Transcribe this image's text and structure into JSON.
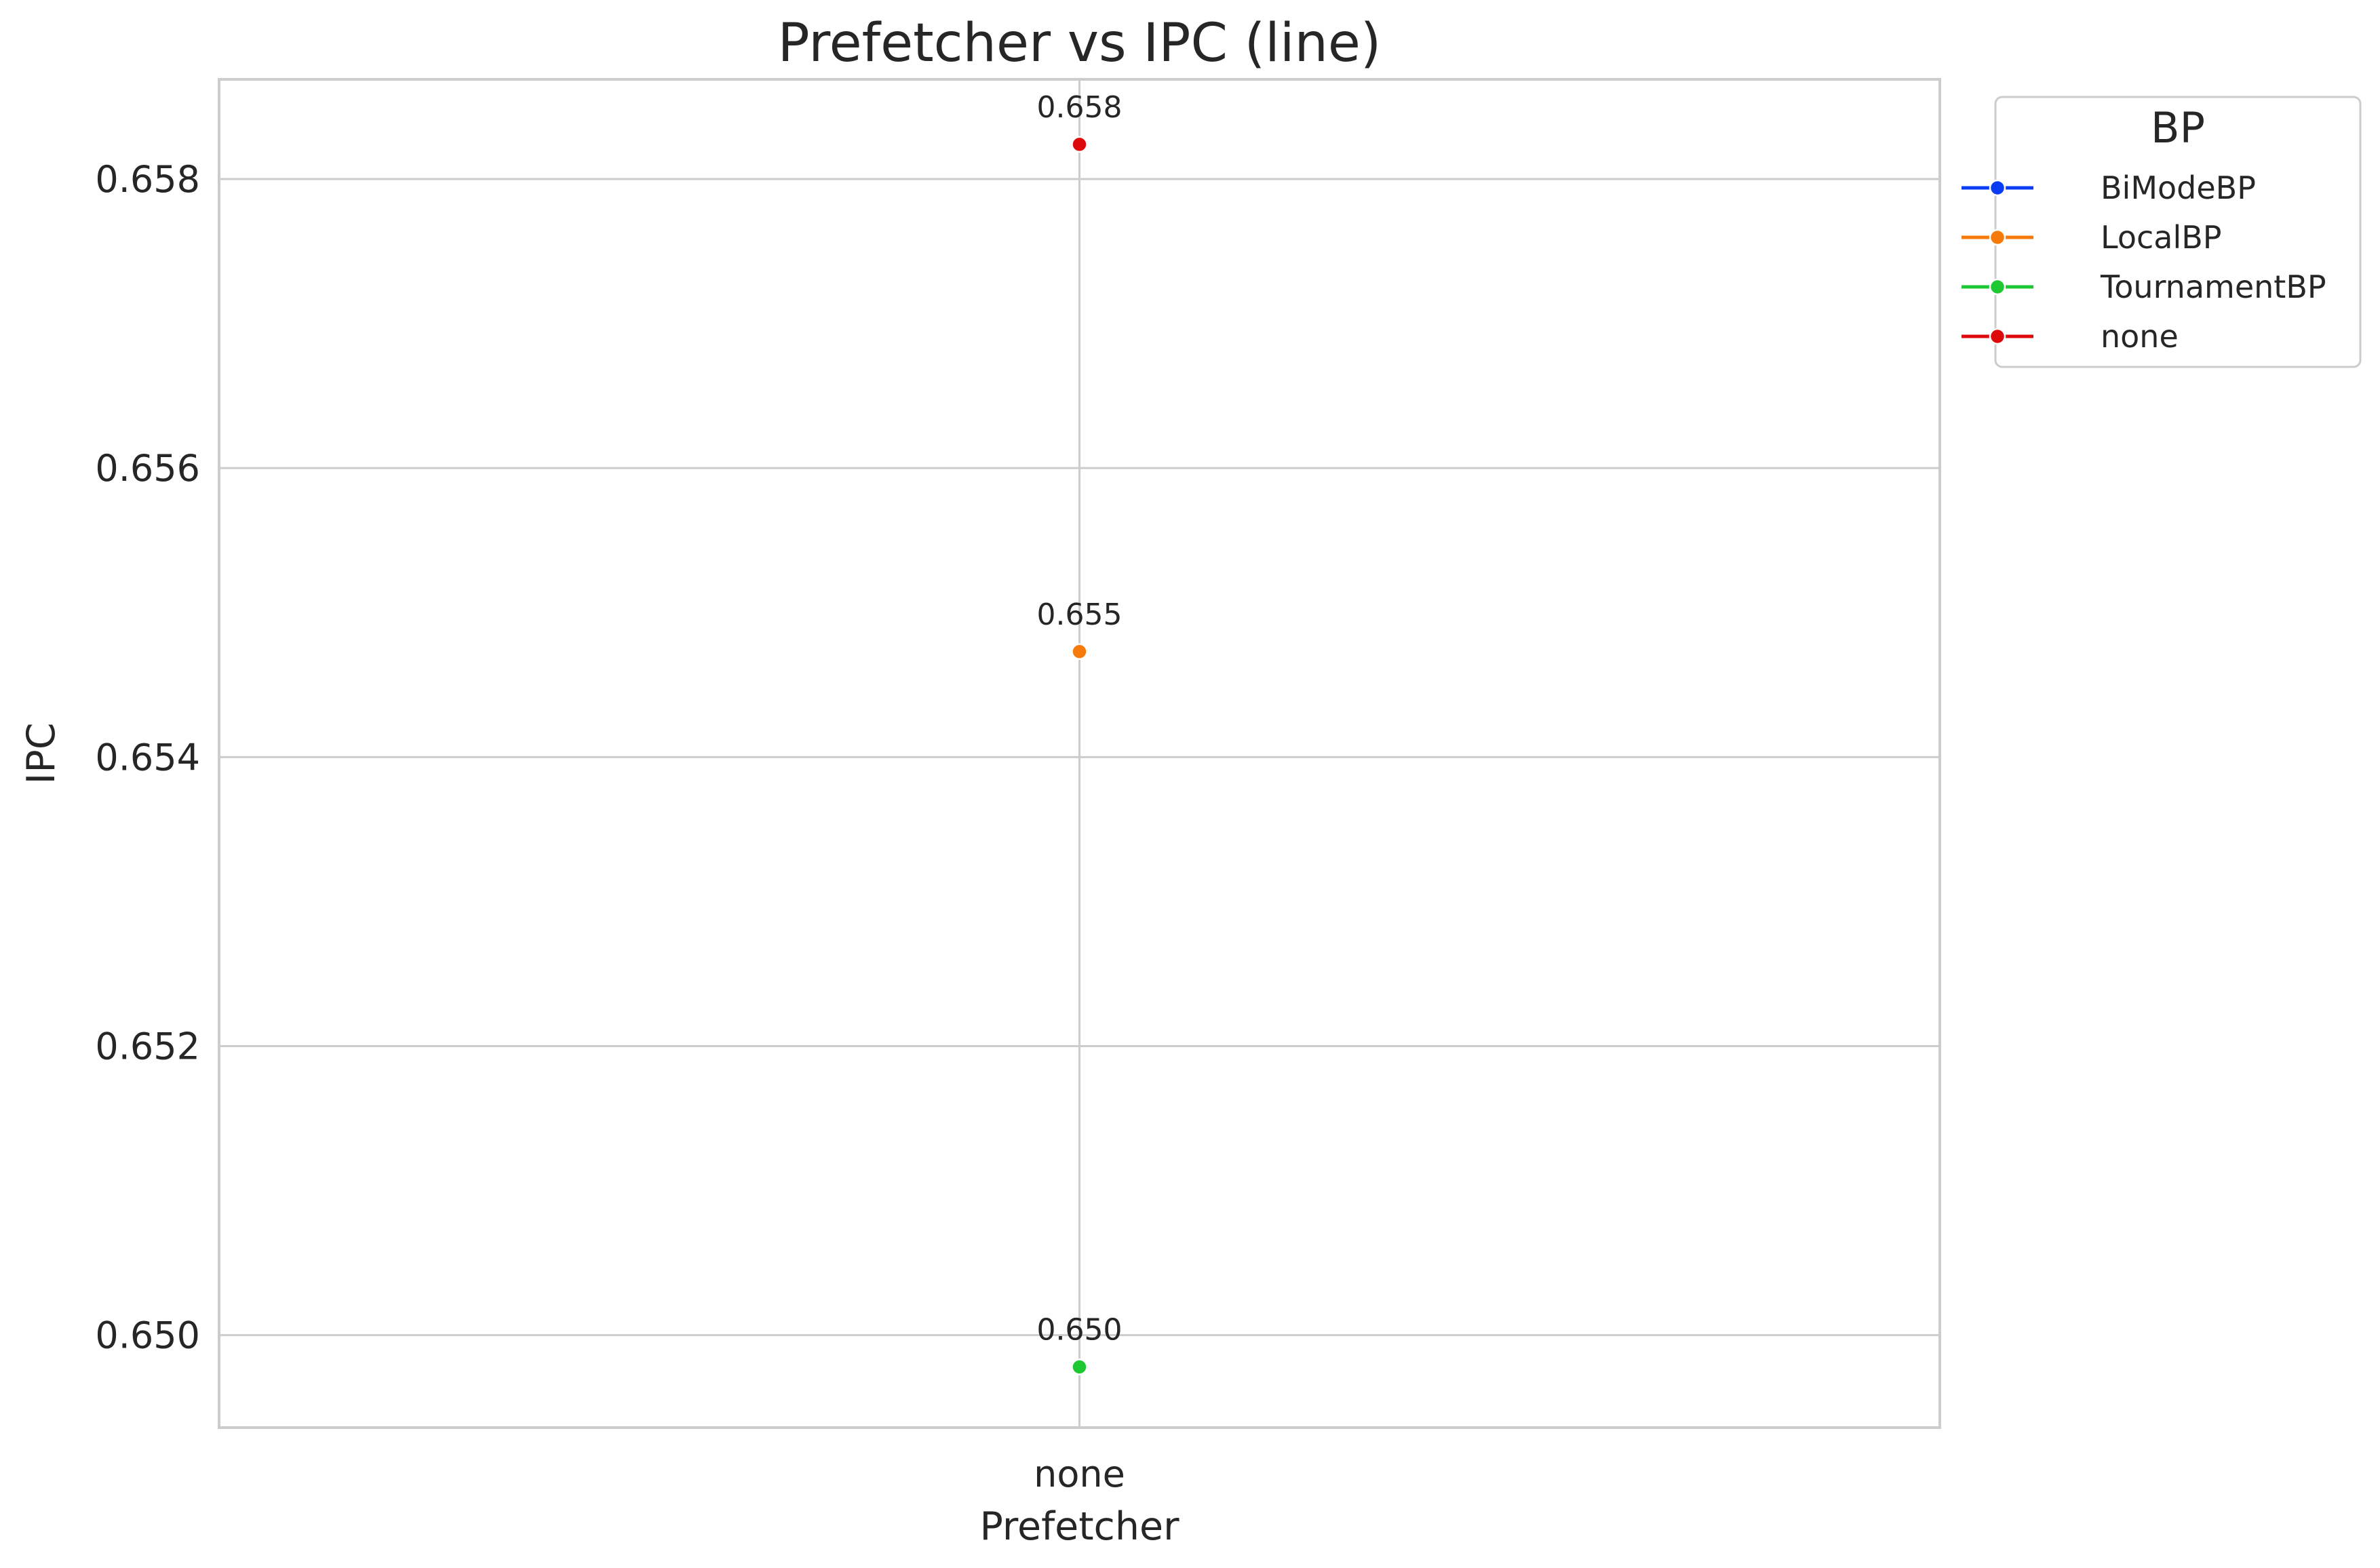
{
  "chart_data": {
    "type": "line",
    "title": "Prefetcher vs IPC (line)",
    "xlabel": "Prefetcher",
    "ylabel": "IPC",
    "categories": [
      "none"
    ],
    "ylim": [
      0.64936,
      0.65869
    ],
    "yticks": [
      0.65,
      0.652,
      0.654,
      0.656,
      0.658
    ],
    "ytick_labels": [
      "0.650",
      "0.652",
      "0.654",
      "0.656",
      "0.658"
    ],
    "grid": true,
    "legend": {
      "title": "BP",
      "placement": "upper right, outside plot"
    },
    "series": [
      {
        "name": "BiModeBP",
        "color": "#0a3cf5",
        "values": [
          0.64978
        ],
        "labels": [
          "0.650"
        ]
      },
      {
        "name": "LocalBP",
        "color": "#f57a0a",
        "values": [
          0.65473
        ],
        "labels": [
          "0.655"
        ]
      },
      {
        "name": "TournamentBP",
        "color": "#1ec832",
        "values": [
          0.64978
        ],
        "labels": [
          "0.650"
        ]
      },
      {
        "name": "none",
        "color": "#dc0a0a",
        "values": [
          0.65824
        ],
        "labels": [
          "0.658"
        ]
      }
    ]
  }
}
